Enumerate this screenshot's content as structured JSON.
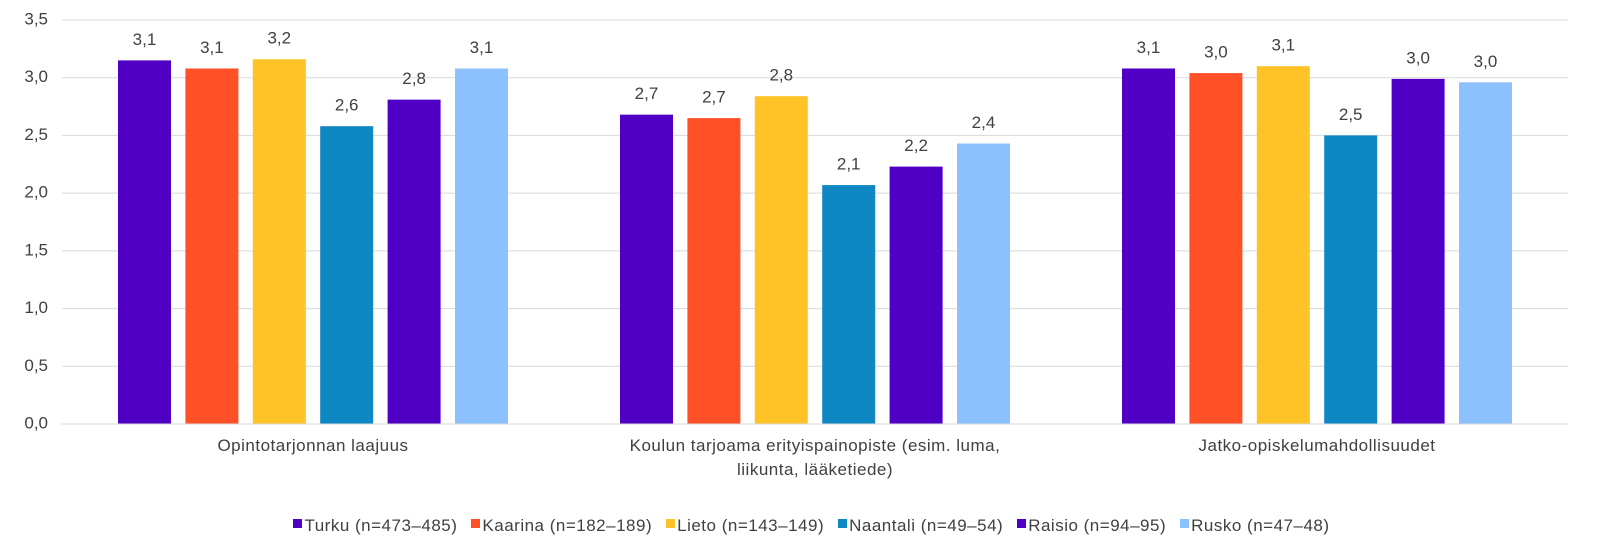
{
  "chart_data": {
    "type": "bar",
    "categories": [
      "Opintotarjonnan laajuus",
      "Koulun tarjoama erityispainopiste (esim. luma, liikunta, lääketiede)",
      "Jatko-opiskelumahdollisuudet"
    ],
    "series": [
      {
        "name": "Turku (n=473–485)",
        "color": "#5000c4",
        "values": [
          3.15,
          2.68,
          3.08
        ],
        "value_labels": [
          "3,1",
          "2,7",
          "3,1"
        ]
      },
      {
        "name": "Kaarina (n=182–189)",
        "color": "#ff5028",
        "values": [
          3.08,
          2.65,
          3.04
        ],
        "value_labels": [
          "3,1",
          "2,7",
          "3,0"
        ]
      },
      {
        "name": "Lieto (n=143–149)",
        "color": "#ffc328",
        "values": [
          3.16,
          2.84,
          3.1
        ],
        "value_labels": [
          "3,2",
          "2,8",
          "3,1"
        ]
      },
      {
        "name": "Naantali (n=49–54)",
        "color": "#0f87c3",
        "values": [
          2.58,
          2.07,
          2.5
        ],
        "value_labels": [
          "2,6",
          "2,1",
          "2,5"
        ]
      },
      {
        "name": "Raisio (n=94–95)",
        "color": "#5000c4",
        "values": [
          2.81,
          2.23,
          2.99
        ],
        "value_labels": [
          "2,8",
          "2,2",
          "3,0"
        ]
      },
      {
        "name": "Rusko (n=47–48)",
        "color": "#8cc0ff",
        "values": [
          3.08,
          2.43,
          2.96
        ],
        "value_labels": [
          "3,1",
          "2,4",
          "3,0"
        ]
      }
    ],
    "ylim": [
      0,
      3.5
    ],
    "yticks": [
      {
        "value": 0,
        "label": "0,0"
      },
      {
        "value": 0.5,
        "label": "0,5"
      },
      {
        "value": 1,
        "label": "1,0"
      },
      {
        "value": 1.5,
        "label": "1,5"
      },
      {
        "value": 2,
        "label": "2,0"
      },
      {
        "value": 2.5,
        "label": "2,5"
      },
      {
        "value": 3,
        "label": "3,0"
      },
      {
        "value": 3.5,
        "label": "3,5"
      }
    ],
    "grid": true,
    "legend": "bottom"
  }
}
